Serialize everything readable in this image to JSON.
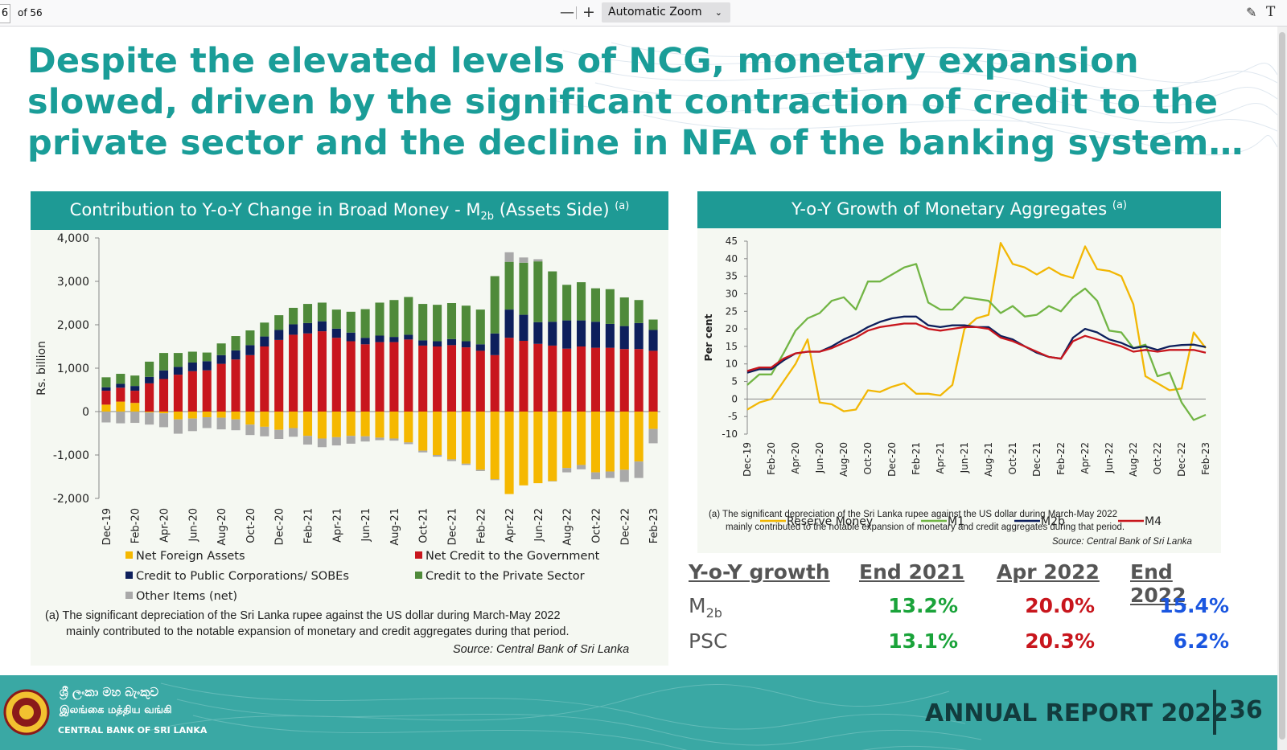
{
  "viewer": {
    "page_number": "6",
    "page_count": "of 56",
    "zoom_out": "—",
    "zoom_in": "+",
    "zoom_value": "Automatic Zoom"
  },
  "slide": {
    "headline": "Despite the elevated levels of NCG, monetary expansion slowed, driven by the significant contraction of credit to the private sector and the decline in NFA of the banking system…",
    "footer": {
      "bank_name_sinhala": "ශ්‍රී ලංකා මහ බැංකුව",
      "bank_name_tamil": "இலங்கை மத்திய வங்கி",
      "bank_name_english": "CENTRAL BANK OF SRI LANKA",
      "report": "ANNUAL REPORT 2022",
      "page": "36"
    },
    "colors": {
      "teal": "#1e9a95",
      "nfa": "#f5b800",
      "ncg": "#c8161d",
      "cpc": "#0d1f5c",
      "psc": "#4f8a3a",
      "other": "#a9a9a9"
    }
  },
  "chart_data": [
    {
      "type": "bar",
      "stacked": true,
      "title": "Contribution to Y-o-Y Change in Broad Money - M",
      "title_sub": "2b",
      "title_suffix": "(Assets Side)",
      "title_note": "(a)",
      "ylabel": "Rs. billion",
      "ylim": [
        -2000,
        4000
      ],
      "yticks": [
        "4,000",
        "3,000",
        "2,000",
        "1,000",
        "0",
        "-1,000",
        "-2,000"
      ],
      "grid": false,
      "legend_position": "bottom",
      "categories": [
        "Dec-19",
        "Jan-20",
        "Feb-20",
        "Mar-20",
        "Apr-20",
        "May-20",
        "Jun-20",
        "Jul-20",
        "Aug-20",
        "Sep-20",
        "Oct-20",
        "Nov-20",
        "Dec-20",
        "Jan-21",
        "Feb-21",
        "Mar-21",
        "Apr-21",
        "May-21",
        "Jun-21",
        "Jul-21",
        "Aug-21",
        "Sep-21",
        "Oct-21",
        "Nov-21",
        "Dec-21",
        "Jan-22",
        "Feb-22",
        "Mar-22",
        "Apr-22",
        "May-22",
        "Jun-22",
        "Jul-22",
        "Aug-22",
        "Sep-22",
        "Oct-22",
        "Nov-22",
        "Dec-22",
        "Jan-23",
        "Feb-23"
      ],
      "xtick_labels": [
        "Dec-19",
        "Feb-20",
        "Apr-20",
        "Jun-20",
        "Aug-20",
        "Oct-20",
        "Dec-20",
        "Feb-21",
        "Apr-21",
        "Jun-21",
        "Aug-21",
        "Oct-21",
        "Dec-21",
        "Feb-22",
        "Apr-22",
        "Jun-22",
        "Aug-22",
        "Oct-22",
        "Dec-22",
        "Feb-23"
      ],
      "series": [
        {
          "name": "Net Foreign Assets",
          "color": "#f5b800",
          "values": [
            160,
            230,
            200,
            -20,
            -40,
            -180,
            -160,
            -130,
            -140,
            -180,
            -300,
            -350,
            -420,
            -380,
            -560,
            -620,
            -590,
            -560,
            -570,
            -600,
            -620,
            -710,
            -900,
            -1000,
            -1100,
            -1200,
            -1340,
            -1560,
            -1900,
            -1700,
            -1650,
            -1600,
            -1300,
            -1230,
            -1400,
            -1380,
            -1340,
            -1150,
            -400
          ]
        },
        {
          "name": "Net Credit to the Government",
          "color": "#c8161d",
          "values": [
            320,
            320,
            280,
            650,
            750,
            850,
            930,
            950,
            1100,
            1200,
            1300,
            1500,
            1650,
            1770,
            1800,
            1850,
            1700,
            1620,
            1550,
            1600,
            1600,
            1660,
            1520,
            1500,
            1530,
            1480,
            1400,
            1300,
            1700,
            1630,
            1560,
            1520,
            1450,
            1500,
            1470,
            1470,
            1440,
            1440,
            1400
          ]
        },
        {
          "name": "Credit to  Public Corporations/ SOBEs",
          "color": "#0d1f5c",
          "values": [
            80,
            90,
            110,
            150,
            200,
            180,
            200,
            210,
            200,
            210,
            230,
            230,
            230,
            240,
            240,
            230,
            210,
            200,
            150,
            150,
            120,
            110,
            120,
            120,
            140,
            140,
            150,
            500,
            650,
            600,
            500,
            550,
            650,
            600,
            600,
            550,
            530,
            600,
            480
          ]
        },
        {
          "name": "Credit to the Private Sector",
          "color": "#4f8a3a",
          "values": [
            230,
            230,
            240,
            350,
            400,
            320,
            250,
            200,
            270,
            330,
            340,
            320,
            340,
            380,
            440,
            430,
            440,
            480,
            660,
            760,
            850,
            870,
            840,
            840,
            830,
            820,
            800,
            1320,
            1100,
            1200,
            1400,
            1160,
            820,
            880,
            770,
            800,
            660,
            530,
            240
          ]
        },
        {
          "name": "Other Items (net)",
          "color": "#a9a9a9",
          "values": [
            -250,
            -270,
            -260,
            -280,
            -320,
            -330,
            -290,
            -250,
            -270,
            -250,
            -240,
            -220,
            -210,
            -200,
            -200,
            -200,
            -190,
            -180,
            -120,
            -60,
            -50,
            -40,
            -40,
            -40,
            -40,
            -30,
            -30,
            -20,
            220,
            120,
            50,
            -10,
            -100,
            -100,
            -160,
            -150,
            -280,
            -380,
            -330
          ]
        }
      ],
      "footnote_line1": "(a) The significant depreciation of the Sri Lanka rupee against the US dollar during March-May 2022",
      "footnote_line2": "mainly contributed to the notable expansion of monetary and credit aggregates during that period.",
      "source": "Source: Central Bank of Sri Lanka"
    },
    {
      "type": "line",
      "title": "Y-o-Y Growth of Monetary Aggregates",
      "title_note": "(a)",
      "ylabel": "Per cent",
      "ylim": [
        -10,
        45
      ],
      "yticks": [
        "45",
        "40",
        "35",
        "30",
        "25",
        "20",
        "15",
        "10",
        "5",
        "0",
        "-5",
        "-10"
      ],
      "grid": false,
      "legend_position": "bottom",
      "x": [
        "Dec-19",
        "Jan-20",
        "Feb-20",
        "Mar-20",
        "Apr-20",
        "May-20",
        "Jun-20",
        "Jul-20",
        "Aug-20",
        "Sep-20",
        "Oct-20",
        "Nov-20",
        "Dec-20",
        "Jan-21",
        "Feb-21",
        "Mar-21",
        "Apr-21",
        "May-21",
        "Jun-21",
        "Jul-21",
        "Aug-21",
        "Sep-21",
        "Oct-21",
        "Nov-21",
        "Dec-21",
        "Jan-22",
        "Feb-22",
        "Mar-22",
        "Apr-22",
        "May-22",
        "Jun-22",
        "Jul-22",
        "Aug-22",
        "Sep-22",
        "Oct-22",
        "Nov-22",
        "Dec-22",
        "Jan-23",
        "Feb-23"
      ],
      "xtick_labels": [
        "Dec-19",
        "Feb-20",
        "Apr-20",
        "Jun-20",
        "Aug-20",
        "Oct-20",
        "Dec-20",
        "Feb-21",
        "Apr-21",
        "Jun-21",
        "Aug-21",
        "Oct-21",
        "Dec-21",
        "Feb-22",
        "Apr-22",
        "Jun-22",
        "Aug-22",
        "Oct-22",
        "Dec-22",
        "Feb-23"
      ],
      "series": [
        {
          "name": "Reserve Money",
          "color": "#f2b705",
          "values": [
            -3,
            -1,
            0,
            5,
            10,
            17,
            -1,
            -1.5,
            -3.5,
            -3,
            2.5,
            2,
            3.5,
            4.5,
            1.5,
            1.5,
            1,
            4,
            20,
            23,
            24,
            44.5,
            38.5,
            37.5,
            35.5,
            37.5,
            35.5,
            34.5,
            43.5,
            37,
            36.5,
            35,
            27,
            6.5,
            4.5,
            2.5,
            3,
            19,
            14.5
          ]
        },
        {
          "name": "M1",
          "color": "#72b545",
          "values": [
            4,
            7,
            7,
            13,
            19.5,
            23,
            24.5,
            28,
            29,
            25.5,
            33.5,
            33.5,
            35.5,
            37.5,
            38.5,
            27.5,
            25.5,
            25.5,
            29,
            28.5,
            28,
            24.5,
            26.5,
            23.5,
            24,
            26.5,
            25,
            29,
            31.5,
            28,
            19.5,
            19,
            14.5,
            15.5,
            6.5,
            7.5,
            -1,
            -6,
            -4.5
          ]
        },
        {
          "name": "M2b",
          "color": "#0d1f5c",
          "values": [
            7.5,
            8.5,
            8.5,
            11,
            13,
            13.5,
            13.5,
            15,
            17,
            18.5,
            20.5,
            22,
            23,
            23.5,
            23.5,
            21,
            20.5,
            21,
            21,
            20.5,
            20.5,
            18,
            17,
            15,
            13.2,
            12,
            11.5,
            17.5,
            20,
            19,
            17,
            16,
            14.5,
            15,
            14,
            15,
            15.4,
            15.5,
            14.8
          ]
        },
        {
          "name": "M4",
          "color": "#c8161d",
          "values": [
            8,
            9,
            9,
            11.5,
            13,
            13.5,
            13.5,
            14.5,
            16,
            17.5,
            19.5,
            20.5,
            21,
            21.5,
            21.5,
            20,
            19.5,
            20,
            20.5,
            20.5,
            20,
            17.5,
            16.5,
            15,
            13.5,
            12,
            11.5,
            16.5,
            18,
            17,
            16,
            15,
            13.5,
            14,
            13.5,
            14,
            14,
            14,
            13.2
          ]
        }
      ],
      "footnote_line1": "(a) The significant depreciation of the Sri Lanka rupee against the US dollar during March-May 2022",
      "footnote_line2": "mainly contributed to the notable expansion of monetary and credit aggregates during that period.",
      "source": "Source: Central Bank of Sri Lanka"
    },
    {
      "type": "table",
      "headers": [
        "Y-o-Y growth",
        "End 2021",
        "Apr 2022",
        "End 2022"
      ],
      "rows": [
        {
          "label": "M",
          "label_sub": "2b",
          "values": [
            "13.2%",
            "20.0%",
            "15.4%"
          ]
        },
        {
          "label": "PSC",
          "label_sub": "",
          "values": [
            "13.1%",
            "20.3%",
            "6.2%"
          ]
        }
      ],
      "column_colors": [
        "#1aa33a",
        "#c8161d",
        "#1a56e0"
      ]
    }
  ]
}
